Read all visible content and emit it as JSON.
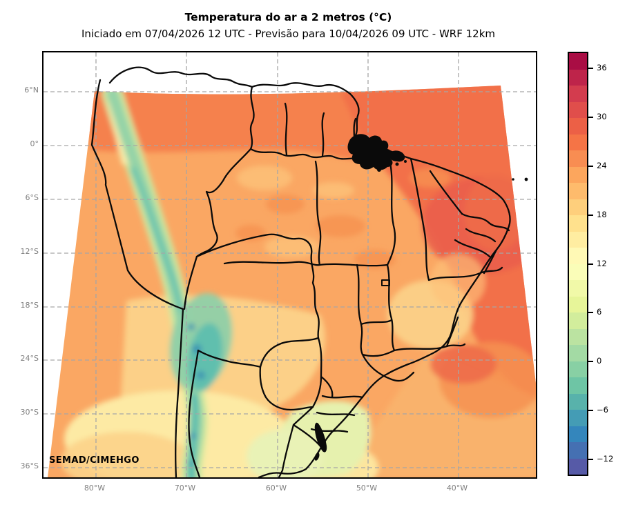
{
  "header": {
    "title": "Temperatura do ar a 2 metros (°C)",
    "subtitle": "Iniciado em 07/04/2026 12 UTC - Previsão para 10/04/2026 09 UTC - WRF 12km"
  },
  "axes": {
    "lat_labels": [
      "6°N",
      "0°",
      "6°S",
      "12°S",
      "18°S",
      "24°S",
      "30°S",
      "36°S"
    ],
    "lon_labels": [
      "80°W",
      "70°W",
      "60°W",
      "50°W",
      "40°W"
    ]
  },
  "map": {
    "watermark": "SEMAD/CIMEHGO"
  },
  "colorbar": {
    "unit": "°C",
    "value_min": -14,
    "value_max": 38,
    "segment_step": 2,
    "ticks": [
      {
        "value": 36,
        "label": "36"
      },
      {
        "value": 30,
        "label": "30"
      },
      {
        "value": 24,
        "label": "24"
      },
      {
        "value": 18,
        "label": "18"
      },
      {
        "value": 12,
        "label": "12"
      },
      {
        "value": 6,
        "label": "6"
      },
      {
        "value": 0,
        "label": "0"
      },
      {
        "value": -6,
        "label": "−6"
      },
      {
        "value": -12,
        "label": "−12"
      }
    ],
    "segment_colors_top_to_bottom": [
      "#a90d44",
      "#be244a",
      "#d33c4e",
      "#e04e4b",
      "#ec6046",
      "#f57446",
      "#f88d52",
      "#fca65d",
      "#febb6c",
      "#fecf7c",
      "#ffe18d",
      "#ffeda1",
      "#fff9b5",
      "#fafdb8",
      "#f1f9a8",
      "#e7f599",
      "#d2ed9c",
      "#bbe3a1",
      "#a3daa4",
      "#88d0a4",
      "#6ec5a5",
      "#58b2ab",
      "#449cb5",
      "#3486bc",
      "#4570b2",
      "#565aa7"
    ]
  },
  "palette": {
    "land_base": "#faa763",
    "north_band": "#f5814d",
    "ocean_north": "#f2704a",
    "ocean_hot_patch": "#ea5f4b",
    "ocean_south": "#f9b26c",
    "ocean_se_warm": "#ee6c4a",
    "land_warm_mottle": "#f69150",
    "land_light_mottle": "#fdc279",
    "pale_yellow": "#fcd389",
    "pale_cream": "#fdeaa4",
    "andes_outer": "#cfe89e",
    "andes_mid": "#95d3a7",
    "andes_core": "#6fc6ad",
    "andes_cold": "#3d95b2",
    "altiplano": "#8fd0a8",
    "altiplano_core": "#60bfae",
    "south_green": "#e6f1ae",
    "uruguay_green": "#e9f2b6",
    "coast_pale_strip": "#f6edaa",
    "border_black": "#0a0a0a",
    "grid_gray": "#a6a6a6",
    "tick_label_gray": "#7f7f7f"
  }
}
